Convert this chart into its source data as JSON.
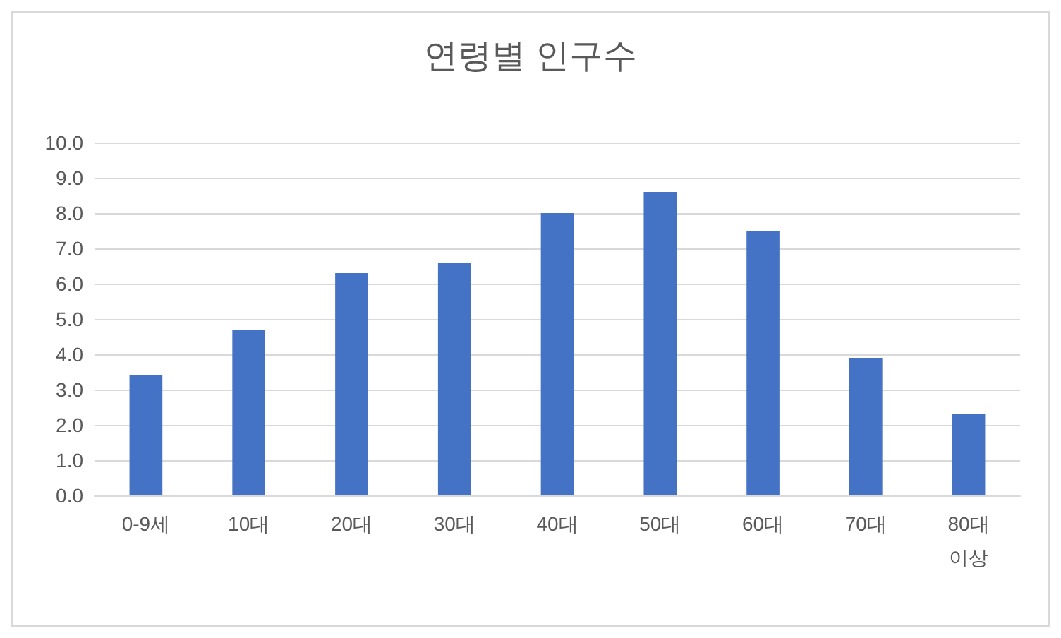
{
  "chart_data": {
    "type": "bar",
    "title": "연령별 인구수",
    "categories": [
      "0-9세",
      "10대",
      "20대",
      "30대",
      "40대",
      "50대",
      "60대",
      "70대",
      "80대 이상"
    ],
    "values": [
      3.4,
      4.7,
      6.3,
      6.6,
      8.0,
      8.6,
      7.5,
      3.9,
      2.3
    ],
    "color": "#4472c4",
    "ylim": [
      0,
      10
    ],
    "yticks": [
      {
        "value": 0,
        "label": "0.0"
      },
      {
        "value": 1,
        "label": "1.0"
      },
      {
        "value": 2,
        "label": "2.0"
      },
      {
        "value": 3,
        "label": "3.0"
      },
      {
        "value": 4,
        "label": "4.0"
      },
      {
        "value": 5,
        "label": "5.0"
      },
      {
        "value": 6,
        "label": "6.0"
      },
      {
        "value": 7,
        "label": "7.0"
      },
      {
        "value": 8,
        "label": "8.0"
      },
      {
        "value": 9,
        "label": "9.0"
      },
      {
        "value": 10,
        "label": "10.0"
      }
    ],
    "grid": "y"
  }
}
